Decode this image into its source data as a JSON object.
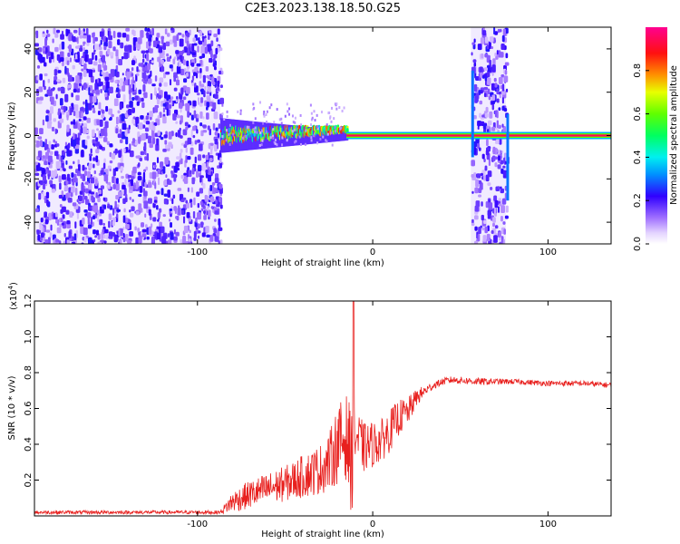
{
  "figure_title": "C2E3.2023.138.18.50.G25",
  "colorbar": {
    "label": "Normalized spectral amplitude",
    "ticks": [
      "0.0",
      "0.2",
      "0.4",
      "0.6",
      "0.8"
    ],
    "range": [
      0,
      1
    ]
  },
  "chart_data": [
    {
      "type": "heatmap",
      "title": "",
      "xlabel": "Height of straight line (km)",
      "ylabel": "Frequency (Hz)",
      "xlim": [
        -193,
        136
      ],
      "ylim": [
        -50,
        50
      ],
      "xticks": [
        "-100",
        "0",
        "100"
      ],
      "yticks": [
        "-40",
        "-20",
        "0",
        "20",
        "40"
      ],
      "grid": false,
      "noise_regions_km": [
        [
          -193,
          -87
        ],
        [
          56,
          76
        ]
      ],
      "signal_band": {
        "from_km": -87,
        "to_km": 136,
        "freq_hz": 0,
        "broadband_until_km": -15,
        "broadband_peak_amplitude": 0.6,
        "narrowband_amplitude": 0.95
      },
      "spikes": [
        {
          "x_km": 57,
          "freq_range_hz": [
            -10,
            30
          ]
        },
        {
          "x_km": 77,
          "freq_range_hz": [
            -30,
            10
          ]
        }
      ]
    },
    {
      "type": "line",
      "title": "",
      "xlabel": "Height of straight line (km)",
      "ylabel": "SNR (10 * v/v)",
      "yscale_label": "(x10",
      "yscale_exp": "4",
      "yscale_close": ")",
      "xlim": [
        -193,
        136
      ],
      "ylim": [
        0,
        1.2
      ],
      "xticks": [
        "-100",
        "0",
        "100"
      ],
      "yticks": [
        "0.2",
        "0.4",
        "0.6",
        "0.8",
        "1.0",
        "1.2"
      ],
      "series_color": "#e8201e",
      "grid": false,
      "series": [
        {
          "name": "",
          "x": [
            -193,
            -150,
            -120,
            -100,
            -87,
            -80,
            -70,
            -60,
            -50,
            -40,
            -30,
            -25,
            -20,
            -15,
            -12,
            -10,
            -5,
            0,
            5,
            10,
            15,
            20,
            25,
            30,
            35,
            40,
            45,
            60,
            80,
            100,
            120,
            136
          ],
          "y": [
            0.02,
            0.02,
            0.02,
            0.02,
            0.02,
            0.08,
            0.12,
            0.15,
            0.18,
            0.22,
            0.26,
            0.3,
            0.4,
            0.44,
            0.3,
            0.45,
            0.38,
            0.4,
            0.42,
            0.48,
            0.55,
            0.58,
            0.66,
            0.7,
            0.73,
            0.75,
            0.76,
            0.75,
            0.75,
            0.74,
            0.74,
            0.73
          ],
          "noise_amp": [
            0.01,
            0.01,
            0.01,
            0.01,
            0.01,
            0.06,
            0.08,
            0.09,
            0.1,
            0.12,
            0.14,
            0.16,
            0.22,
            0.24,
            0.3,
            0.16,
            0.14,
            0.13,
            0.12,
            0.12,
            0.1,
            0.08,
            0.05,
            0.03,
            0.02,
            0.02,
            0.02,
            0.02,
            0.015,
            0.015,
            0.015,
            0.015
          ]
        }
      ],
      "peak": {
        "x": -11,
        "y": 1.2
      }
    }
  ]
}
